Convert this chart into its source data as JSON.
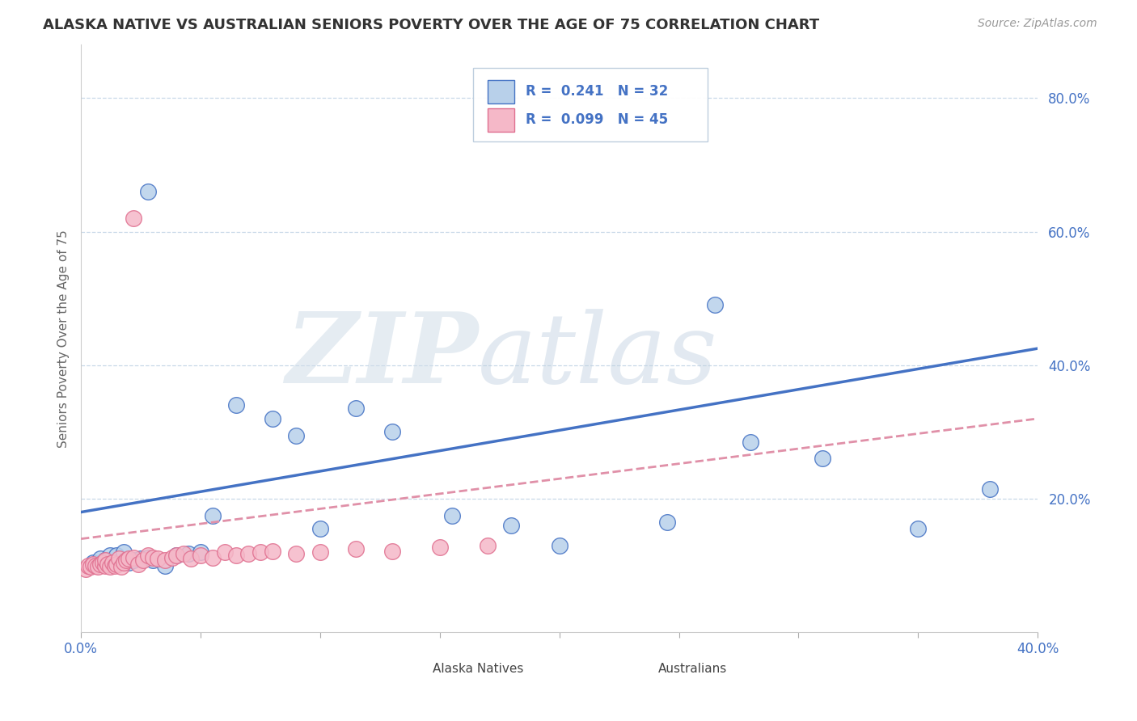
{
  "title": "ALASKA NATIVE VS AUSTRALIAN SENIORS POVERTY OVER THE AGE OF 75 CORRELATION CHART",
  "source": "Source: ZipAtlas.com",
  "ylabel": "Seniors Poverty Over the Age of 75",
  "xlim": [
    0.0,
    0.4
  ],
  "ylim": [
    0.0,
    0.88
  ],
  "R_alaska": 0.241,
  "N_alaska": 32,
  "R_australian": 0.099,
  "N_australian": 45,
  "alaska_fill": "#b8d0ea",
  "alaska_edge": "#4472c4",
  "australian_fill": "#f5b8c8",
  "australian_edge": "#e07090",
  "alaska_line_color": "#4472c4",
  "australian_line_color": "#e090a8",
  "legend_text_color": "#4472c4",
  "background_color": "#ffffff",
  "grid_color": "#c8d8e8",
  "alaska_x": [
    0.005,
    0.008,
    0.01,
    0.012,
    0.015,
    0.018,
    0.02,
    0.022,
    0.025,
    0.028,
    0.03,
    0.035,
    0.04,
    0.045,
    0.05,
    0.055,
    0.065,
    0.08,
    0.09,
    0.1,
    0.115,
    0.13,
    0.155,
    0.18,
    0.2,
    0.245,
    0.265,
    0.28,
    0.31,
    0.35,
    0.38,
    0.028
  ],
  "alaska_y": [
    0.105,
    0.11,
    0.108,
    0.115,
    0.115,
    0.12,
    0.105,
    0.108,
    0.11,
    0.112,
    0.108,
    0.1,
    0.115,
    0.118,
    0.12,
    0.175,
    0.34,
    0.32,
    0.295,
    0.155,
    0.335,
    0.3,
    0.175,
    0.16,
    0.13,
    0.165,
    0.49,
    0.285,
    0.26,
    0.155,
    0.215,
    0.66
  ],
  "australian_x": [
    0.002,
    0.003,
    0.004,
    0.005,
    0.006,
    0.007,
    0.008,
    0.009,
    0.01,
    0.01,
    0.011,
    0.012,
    0.013,
    0.014,
    0.015,
    0.016,
    0.017,
    0.018,
    0.019,
    0.02,
    0.022,
    0.024,
    0.026,
    0.028,
    0.03,
    0.032,
    0.035,
    0.038,
    0.04,
    0.043,
    0.046,
    0.05,
    0.055,
    0.06,
    0.065,
    0.07,
    0.075,
    0.08,
    0.09,
    0.1,
    0.115,
    0.13,
    0.15,
    0.17,
    0.022
  ],
  "australian_y": [
    0.095,
    0.1,
    0.098,
    0.102,
    0.1,
    0.098,
    0.102,
    0.105,
    0.1,
    0.108,
    0.102,
    0.098,
    0.105,
    0.1,
    0.102,
    0.11,
    0.098,
    0.105,
    0.108,
    0.11,
    0.112,
    0.102,
    0.108,
    0.115,
    0.112,
    0.11,
    0.108,
    0.112,
    0.115,
    0.118,
    0.11,
    0.115,
    0.112,
    0.12,
    0.115,
    0.118,
    0.12,
    0.122,
    0.118,
    0.12,
    0.125,
    0.122,
    0.128,
    0.13,
    0.62
  ],
  "alaska_trendline_x": [
    0.0,
    0.4
  ],
  "alaska_trendline_y": [
    0.18,
    0.425
  ],
  "australian_trendline_x": [
    0.0,
    0.4
  ],
  "australian_trendline_y": [
    0.14,
    0.32
  ]
}
